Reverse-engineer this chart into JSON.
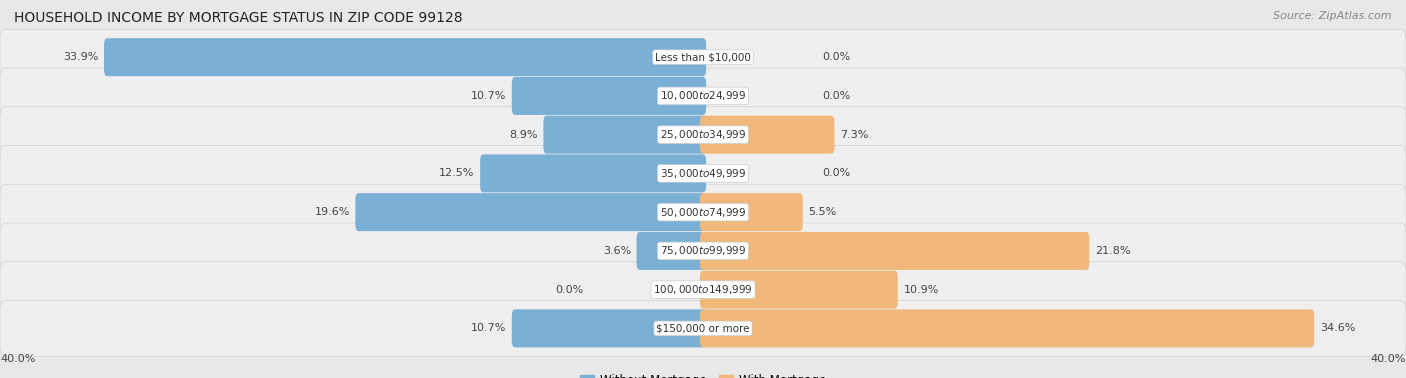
{
  "title": "HOUSEHOLD INCOME BY MORTGAGE STATUS IN ZIP CODE 99128",
  "source": "Source: ZipAtlas.com",
  "categories": [
    "Less than $10,000",
    "$10,000 to $24,999",
    "$25,000 to $34,999",
    "$35,000 to $49,999",
    "$50,000 to $74,999",
    "$75,000 to $99,999",
    "$100,000 to $149,999",
    "$150,000 or more"
  ],
  "without_mortgage": [
    33.9,
    10.7,
    8.9,
    12.5,
    19.6,
    3.6,
    0.0,
    10.7
  ],
  "with_mortgage": [
    0.0,
    0.0,
    7.3,
    0.0,
    5.5,
    21.8,
    10.9,
    34.6
  ],
  "color_without": "#7aafd6",
  "color_with": "#f0b87a",
  "axis_max": 40.0,
  "background_color": "#e8e8e8",
  "row_bg": "#efefef",
  "title_fontsize": 10,
  "source_fontsize": 8,
  "label_fontsize": 8,
  "category_fontsize": 7.5,
  "legend_fontsize": 8.5
}
